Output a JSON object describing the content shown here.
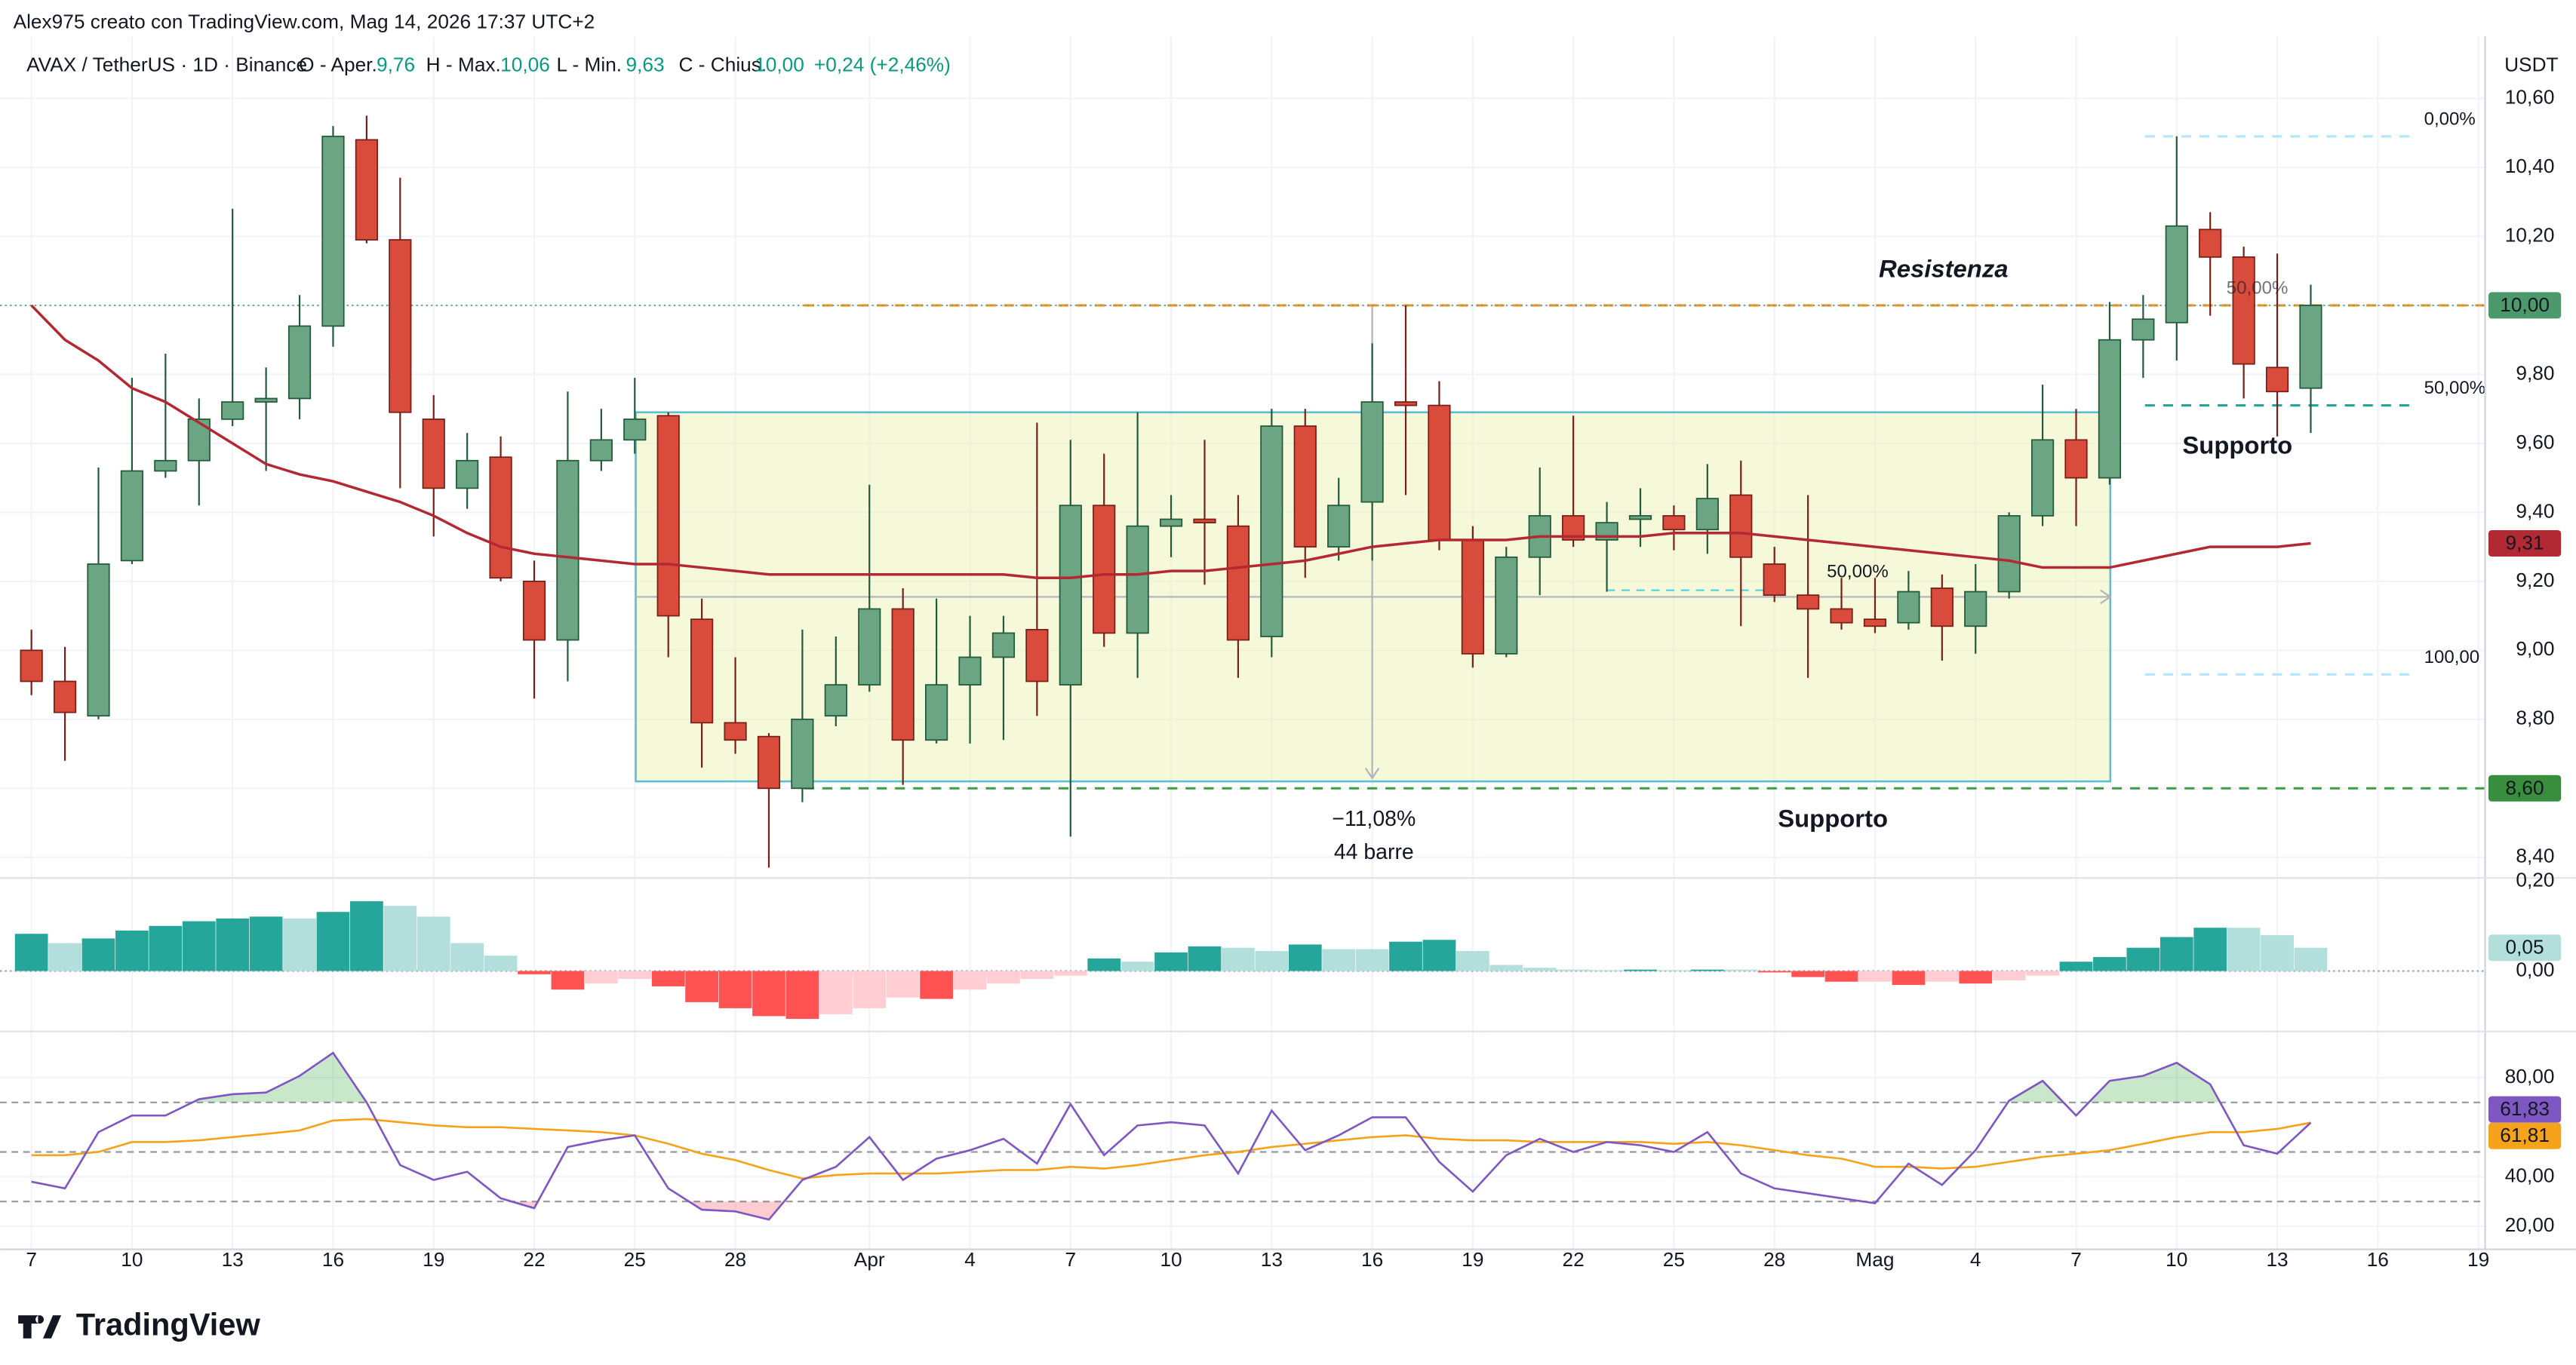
{
  "header": {
    "attribution": "Alex975 creato con TradingView.com, Mag 14, 2026 17:37 UTC+2",
    "symbol": "AVAX / TetherUS · 1D · Binance",
    "ohlc": [
      "O - Aper.",
      "9,76",
      "H - Max.",
      "10,06",
      "L - Min.",
      "9,63",
      "C - Chius.",
      "10,00",
      "+0,24 (+2,46%)"
    ],
    "currency": "USDT",
    "logo": "TradingView"
  },
  "chart_data": [
    {
      "type": "candlestick",
      "categories": [
        "7",
        null,
        null,
        "10",
        null,
        null,
        "13",
        null,
        null,
        "16",
        null,
        null,
        "19",
        null,
        null,
        "22",
        null,
        null,
        "25",
        null,
        null,
        "28",
        null,
        null,
        null,
        "Apr",
        null,
        null,
        "4",
        null,
        null,
        "7",
        null,
        null,
        "10",
        null,
        null,
        "13",
        null,
        null,
        "16",
        null,
        null,
        "19",
        null,
        null,
        "22",
        null,
        null,
        "25",
        null,
        null,
        "28",
        null,
        null,
        "Mag",
        null,
        null,
        "4",
        null,
        null,
        "7",
        null,
        null,
        "10",
        null,
        null,
        "13",
        null
      ],
      "future_categories": [
        "16",
        "19"
      ],
      "open": [
        9.0,
        8.91,
        8.81,
        9.26,
        9.52,
        9.55,
        9.67,
        9.72,
        9.73,
        9.94,
        10.48,
        10.19,
        9.67,
        9.47,
        9.56,
        9.2,
        9.03,
        9.55,
        9.61,
        9.68,
        9.09,
        8.79,
        8.75,
        8.6,
        8.81,
        8.9,
        9.12,
        8.74,
        8.9,
        8.98,
        9.06,
        8.9,
        9.42,
        9.05,
        9.36,
        9.38,
        9.36,
        9.04,
        9.65,
        9.3,
        9.43,
        9.72,
        9.71,
        9.32,
        8.99,
        9.27,
        9.39,
        9.32,
        9.38,
        9.39,
        9.35,
        9.45,
        9.25,
        9.16,
        9.12,
        9.09,
        9.08,
        9.18,
        9.07,
        9.17,
        9.39,
        9.61,
        9.5,
        9.9,
        9.95,
        10.22,
        10.14,
        9.82,
        9.76
      ],
      "high": [
        9.06,
        9.01,
        9.53,
        9.79,
        9.86,
        9.73,
        10.28,
        9.82,
        10.03,
        10.52,
        10.55,
        10.37,
        9.74,
        9.63,
        9.62,
        9.26,
        9.75,
        9.7,
        9.79,
        9.69,
        9.15,
        8.98,
        8.76,
        9.06,
        9.04,
        9.48,
        9.18,
        9.15,
        9.1,
        9.1,
        9.66,
        9.61,
        9.57,
        9.69,
        9.45,
        9.61,
        9.45,
        9.7,
        9.7,
        9.5,
        9.89,
        10.0,
        9.78,
        9.36,
        9.3,
        9.53,
        9.68,
        9.43,
        9.47,
        9.42,
        9.54,
        9.55,
        9.3,
        9.45,
        9.21,
        9.21,
        9.23,
        9.22,
        9.25,
        9.4,
        9.77,
        9.7,
        10.01,
        10.03,
        10.49,
        10.27,
        10.17,
        10.15,
        10.06
      ],
      "low": [
        8.87,
        8.68,
        8.8,
        9.25,
        9.5,
        9.42,
        9.65,
        9.52,
        9.67,
        9.88,
        10.18,
        9.47,
        9.33,
        9.41,
        9.2,
        8.86,
        8.91,
        9.52,
        9.57,
        8.98,
        8.66,
        8.7,
        8.37,
        8.56,
        8.78,
        8.88,
        8.61,
        8.73,
        8.73,
        8.74,
        8.81,
        8.46,
        9.01,
        8.92,
        9.27,
        9.19,
        8.92,
        8.98,
        9.21,
        9.26,
        9.26,
        9.45,
        9.29,
        8.95,
        8.98,
        9.16,
        9.3,
        9.17,
        9.3,
        9.29,
        9.28,
        9.07,
        9.14,
        8.92,
        9.06,
        9.05,
        9.06,
        8.97,
        8.99,
        9.15,
        9.36,
        9.36,
        9.48,
        9.79,
        9.84,
        9.97,
        9.73,
        9.62,
        9.63
      ],
      "close": [
        8.91,
        8.82,
        9.25,
        9.52,
        9.55,
        9.67,
        9.72,
        9.73,
        9.94,
        10.49,
        10.19,
        9.69,
        9.47,
        9.55,
        9.21,
        9.03,
        9.55,
        9.61,
        9.67,
        9.1,
        8.79,
        8.74,
        8.6,
        8.8,
        8.9,
        9.12,
        8.74,
        8.9,
        8.98,
        9.05,
        8.91,
        9.42,
        9.05,
        9.36,
        9.38,
        9.37,
        9.03,
        9.65,
        9.3,
        9.42,
        9.72,
        9.71,
        9.32,
        8.99,
        9.27,
        9.39,
        9.32,
        9.37,
        9.39,
        9.35,
        9.44,
        9.27,
        9.16,
        9.12,
        9.08,
        9.07,
        9.17,
        9.07,
        9.17,
        9.39,
        9.61,
        9.5,
        9.9,
        9.96,
        10.23,
        10.14,
        9.83,
        9.75,
        10.0
      ],
      "up_color": "#6ba583",
      "up_border": "#225b3a",
      "down_color": "#d94c3c",
      "down_border": "#7a1f18",
      "close_tag": "10,00",
      "series": [
        {
          "color": "#b22833",
          "tag": "9,31",
          "values": [
            10.0,
            9.9,
            9.84,
            9.76,
            9.72,
            9.66,
            9.6,
            9.54,
            9.51,
            9.49,
            9.46,
            9.43,
            9.39,
            9.34,
            9.3,
            9.28,
            9.27,
            9.26,
            9.25,
            9.25,
            9.24,
            9.23,
            9.22,
            9.22,
            9.22,
            9.22,
            9.22,
            9.22,
            9.22,
            9.22,
            9.21,
            9.21,
            9.22,
            9.22,
            9.23,
            9.23,
            9.24,
            9.25,
            9.26,
            9.28,
            9.3,
            9.31,
            9.32,
            9.32,
            9.32,
            9.33,
            9.33,
            9.33,
            9.33,
            9.34,
            9.34,
            9.34,
            9.33,
            9.32,
            9.31,
            9.3,
            9.29,
            9.28,
            9.27,
            9.26,
            9.24,
            9.24,
            9.24,
            9.26,
            9.28,
            9.3,
            9.3,
            9.3,
            9.31
          ]
        }
      ],
      "ylim": [
        8.34,
        10.78
      ],
      "yticks": [
        {
          "value": 10.6,
          "label": "10,60"
        },
        {
          "value": 10.4,
          "label": "10,40"
        },
        {
          "value": 10.2,
          "label": "10,20"
        },
        {
          "value": 10.0,
          "label": "10,00"
        },
        {
          "value": 9.8,
          "label": "9,80"
        },
        {
          "value": 9.6,
          "label": "9,60"
        },
        {
          "value": 9.4,
          "label": "9,40"
        },
        {
          "value": 9.2,
          "label": "9,20"
        },
        {
          "value": 9.0,
          "label": "9,00"
        },
        {
          "value": 8.8,
          "label": "8,80"
        },
        {
          "value": 8.6,
          "label": "8,60"
        },
        {
          "value": 8.4,
          "label": "8,40"
        }
      ],
      "grid": true,
      "levels": [
        {
          "value": 10.0,
          "color": "#f7931a",
          "label": "Resistenza"
        },
        {
          "value": 8.6,
          "color": "#43a047",
          "label": "Supporto",
          "tag": "8,60"
        }
      ],
      "range": {
        "top": 9.69,
        "bottom": 8.62,
        "change": "−11,08%",
        "bars": "44 barre",
        "mid": "50,00%"
      },
      "fib": [
        {
          "value": 10.49,
          "label": "0,00%",
          "color": "#b3e5fc"
        },
        {
          "value": 9.71,
          "label": "50,00%",
          "color": "#26a69a"
        },
        {
          "value": 8.93,
          "label": "100,00",
          "color": "#b3e5fc"
        }
      ],
      "annotations": [
        "Supporto",
        "50,00%"
      ]
    },
    {
      "type": "bar",
      "values": [
        0.08,
        0.06,
        0.07,
        0.087,
        0.097,
        0.107,
        0.113,
        0.117,
        0.113,
        0.127,
        0.15,
        0.14,
        0.117,
        0.06,
        0.033,
        -0.007,
        -0.04,
        -0.027,
        -0.017,
        -0.033,
        -0.067,
        -0.08,
        -0.097,
        -0.103,
        -0.093,
        -0.08,
        -0.057,
        -0.06,
        -0.04,
        -0.027,
        -0.017,
        -0.01,
        0.027,
        0.02,
        0.04,
        0.053,
        0.05,
        0.043,
        0.057,
        0.047,
        0.047,
        0.063,
        0.067,
        0.043,
        0.013,
        0.007,
        0.003,
        0.002,
        0.003,
        0.002,
        0.003,
        0.003,
        -0.003,
        -0.013,
        -0.023,
        -0.023,
        -0.03,
        -0.023,
        -0.027,
        -0.02,
        -0.01,
        0.02,
        0.03,
        0.05,
        0.073,
        0.093,
        0.093,
        0.077,
        0.05
      ],
      "colors": {
        "up_rising": "#26a69a",
        "up_falling": "#b2dfdb",
        "down_falling": "#ff5252",
        "down_rising": "#ffcdd2"
      },
      "tag": "0,05",
      "ylim": [
        -0.13,
        0.2
      ],
      "yticks": [
        {
          "value": 0.2,
          "label": "0,20"
        },
        {
          "value": 0,
          "label": "0,00"
        }
      ]
    },
    {
      "type": "line",
      "series": [
        {
          "color": "#7e57c2",
          "tag": "61,83",
          "values": [
            38,
            35.3,
            58,
            64.7,
            64.7,
            71.3,
            73.3,
            74,
            80.7,
            90,
            70,
            44.7,
            38.7,
            42,
            31.3,
            27.3,
            52,
            54.7,
            56.7,
            35.3,
            26.7,
            26,
            22.7,
            38.7,
            44,
            56,
            38.7,
            47.3,
            50.7,
            55.3,
            45.3,
            69.3,
            48.7,
            60.7,
            62,
            60.7,
            41.3,
            66.7,
            50.7,
            56.7,
            64,
            64,
            46,
            34,
            48.7,
            55.3,
            50,
            54,
            52.7,
            50,
            58,
            41.3,
            35.3,
            33.3,
            31.3,
            29.3,
            45.3,
            36.7,
            50.7,
            70.7,
            78.7,
            64.7,
            78.7,
            80.7,
            86,
            77.3,
            52.7,
            49.3,
            61.83
          ]
        },
        {
          "color": "#f7a21b",
          "tag": "61,81",
          "values": [
            48.7,
            48.7,
            50,
            54,
            54,
            54.7,
            56,
            57.3,
            58.7,
            62.7,
            63.3,
            62,
            60.7,
            60,
            60,
            59.3,
            58.7,
            58,
            56.7,
            53.3,
            49.3,
            46.7,
            42.7,
            39.3,
            40.7,
            41.3,
            41.3,
            41.3,
            42,
            42.7,
            42.7,
            44,
            43.3,
            44.7,
            46.7,
            48.7,
            50,
            52,
            53.3,
            54.7,
            56,
            56.7,
            55.3,
            54.7,
            54.7,
            54,
            54,
            54,
            54,
            53.3,
            54,
            52.7,
            50.7,
            48.7,
            47.3,
            44,
            44,
            43.3,
            44,
            46,
            48,
            49.3,
            50.7,
            53.3,
            56,
            58,
            58,
            59.3,
            61.81
          ]
        }
      ],
      "bands": [
        70,
        50,
        30
      ],
      "ylim": [
        10.7,
        97.3
      ],
      "yticks": [
        {
          "value": 80,
          "label": "80,00"
        },
        {
          "value": 40,
          "label": "40,00"
        },
        {
          "value": 20,
          "label": "20,00"
        }
      ]
    }
  ]
}
